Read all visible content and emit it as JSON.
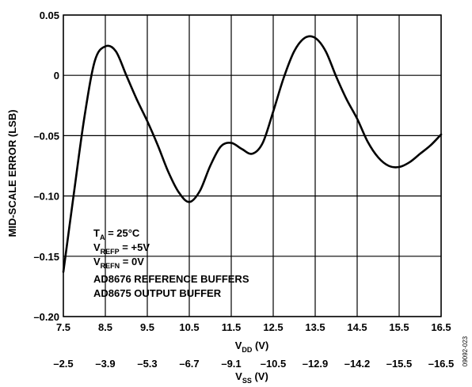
{
  "chart_data": {
    "type": "line",
    "title": "",
    "ylabel": "MID-SCALE ERROR (LSB)",
    "xlabel_main": "V",
    "xlabel_main_sub": "DD",
    "xlabel_main_unit": " (V)",
    "xlabel_secondary": "V",
    "xlabel_secondary_sub": "SS",
    "xlabel_secondary_unit": " (V)",
    "xlim": [
      7.5,
      16.5
    ],
    "ylim": [
      -0.2,
      0.05
    ],
    "grid": true,
    "x_ticks": [
      7.5,
      8.5,
      9.5,
      10.5,
      11.5,
      12.5,
      13.5,
      14.5,
      15.5,
      16.5
    ],
    "x_tick_labels": [
      "7.5",
      "8.5",
      "9.5",
      "10.5",
      "11.5",
      "12.5",
      "13.5",
      "14.5",
      "15.5",
      "16.5"
    ],
    "x2_tick_labels": [
      "–2.5",
      "–3.9",
      "–5.3",
      "–6.7",
      "–9.1",
      "–10.5",
      "–12.9",
      "–14.2",
      "–15.5",
      "–16.5"
    ],
    "y_ticks": [
      0.05,
      0,
      -0.05,
      -0.1,
      -0.15,
      -0.2
    ],
    "y_tick_labels": [
      "0.05",
      "0",
      "–0.05",
      "–0.10",
      "–0.15",
      "–0.20"
    ],
    "series": [
      {
        "x": [
          7.5,
          7.75,
          8.0,
          8.25,
          8.5,
          8.75,
          9.0,
          9.25,
          9.5,
          9.75,
          10.0,
          10.25,
          10.5,
          10.75,
          11.0,
          11.25,
          11.5,
          11.75,
          12.0,
          12.25,
          12.5,
          12.75,
          13.0,
          13.25,
          13.5,
          13.75,
          14.0,
          14.25,
          14.5,
          14.75,
          15.0,
          15.25,
          15.5,
          15.75,
          16.0,
          16.25,
          16.5
        ],
        "y": [
          -0.163,
          -0.098,
          -0.035,
          0.012,
          0.024,
          0.02,
          0.0,
          -0.02,
          -0.038,
          -0.058,
          -0.08,
          -0.097,
          -0.105,
          -0.096,
          -0.075,
          -0.059,
          -0.056,
          -0.061,
          -0.065,
          -0.056,
          -0.03,
          -0.002,
          0.02,
          0.031,
          0.031,
          0.02,
          -0.001,
          -0.02,
          -0.036,
          -0.055,
          -0.068,
          -0.075,
          -0.076,
          -0.072,
          -0.065,
          -0.058,
          -0.049
        ]
      }
    ],
    "annotation": {
      "line1_main": "T",
      "line1_sub": "A",
      "line1_rest": " = 25°C",
      "line2_main": "V",
      "line2_sub": "REFP",
      "line2_rest": " = +5V",
      "line3_main": "V",
      "line3_sub": "REFN",
      "line3_rest": " = 0V",
      "line4": "AD8676 REFERENCE BUFFERS",
      "line5": "AD8675 OUTPUT BUFFER"
    },
    "figure_id": "09092-023"
  }
}
